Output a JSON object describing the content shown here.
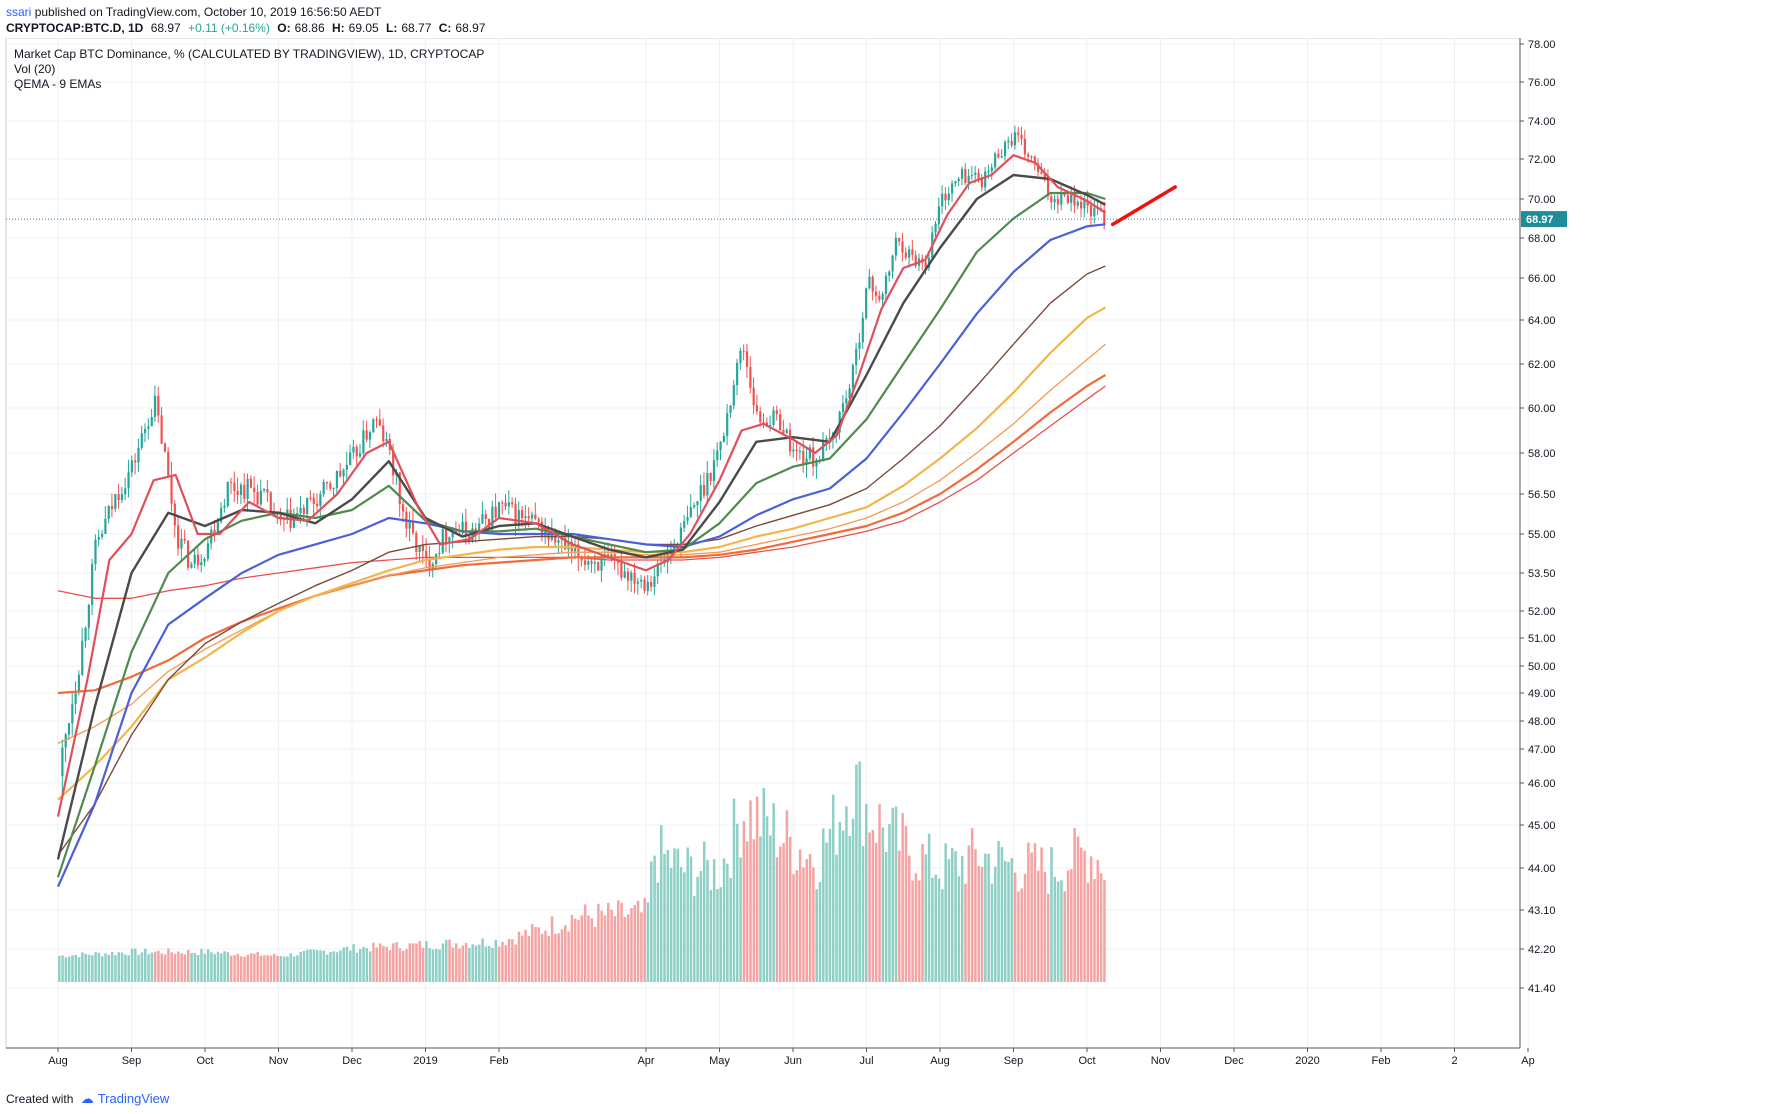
{
  "header": {
    "publisher": "ssari",
    "published_text": "published on TradingView.com, October 10, 2019 16:56:50 AEDT",
    "symbol": "CRYPTOCAP:BTC.D, 1D",
    "last": "68.97",
    "change": "+0.11 (+0.16%)",
    "ohlc": {
      "o_label": "O:",
      "o": "68.86",
      "h_label": "H:",
      "h": "69.05",
      "l_label": "L:",
      "l": "68.77",
      "c_label": "C:",
      "c": "68.97"
    }
  },
  "legend": {
    "line1": "Market Cap BTC Dominance, % (CALCULATED BY TRADINGVIEW), 1D, CRYPTOCAP",
    "line2": "Vol (20)",
    "line3": "QEMA - 9 EMAs"
  },
  "footer": {
    "created_with": "Created with",
    "brand": "TradingView"
  },
  "chart_data": {
    "type": "line",
    "ylim": [
      41.5,
      78.0
    ],
    "price_tick_labels": [
      "78.00",
      "76.00",
      "74.00",
      "72.00",
      "70.00",
      "68.00",
      "66.00",
      "64.00",
      "62.00",
      "60.00",
      "58.00",
      "56.50",
      "55.00",
      "53.50",
      "52.00",
      "51.00",
      "50.00",
      "49.00",
      "48.00",
      "47.00",
      "46.00",
      "45.00",
      "44.00",
      "43.10",
      "42.20",
      "41.40"
    ],
    "price_tick_values": [
      78.0,
      76.0,
      74.0,
      72.0,
      70.0,
      68.0,
      66.0,
      64.0,
      62.0,
      60.0,
      58.0,
      56.5,
      55.0,
      53.5,
      52.0,
      51.0,
      50.0,
      49.0,
      48.0,
      47.0,
      46.0,
      45.0,
      44.0,
      43.1,
      42.2,
      41.4
    ],
    "x_tick_labels": [
      "Aug",
      "Sep",
      "Oct",
      "Nov",
      "Dec",
      "2019",
      "Feb",
      "Apr",
      "May",
      "Jun",
      "Jul",
      "Aug",
      "Sep",
      "Oct",
      "Nov",
      "Dec",
      "2020",
      "Feb",
      "2",
      "Ap"
    ],
    "x_tick_index": [
      0,
      1,
      2,
      3,
      4,
      5,
      6,
      8,
      9,
      10,
      11,
      12,
      13,
      14,
      15,
      16,
      17,
      18,
      19,
      20
    ],
    "last_price": 68.97,
    "last_price_label": "68.97",
    "grid": true,
    "price_path": [
      [
        0,
        46.2
      ],
      [
        0.3,
        50.5
      ],
      [
        0.5,
        54.5
      ],
      [
        0.8,
        56.6
      ],
      [
        1.0,
        57.5
      ],
      [
        1.3,
        60.3
      ],
      [
        1.6,
        55.0
      ],
      [
        1.8,
        53.8
      ],
      [
        2.0,
        54.5
      ],
      [
        2.3,
        56.8
      ],
      [
        2.6,
        56.7
      ],
      [
        2.8,
        56.3
      ],
      [
        3.0,
        55.3
      ],
      [
        3.3,
        55.8
      ],
      [
        3.6,
        56.5
      ],
      [
        4.0,
        57.8
      ],
      [
        4.3,
        59.5
      ],
      [
        4.5,
        58.0
      ],
      [
        4.7,
        55.5
      ],
      [
        5.0,
        53.8
      ],
      [
        5.3,
        55.2
      ],
      [
        5.6,
        55.0
      ],
      [
        6.0,
        56.0
      ],
      [
        6.5,
        55.3
      ],
      [
        7.0,
        54.2
      ],
      [
        7.5,
        53.8
      ],
      [
        8.0,
        53.2
      ],
      [
        8.2,
        53.8
      ],
      [
        8.5,
        55.2
      ],
      [
        8.8,
        57.0
      ],
      [
        9.0,
        58.3
      ],
      [
        9.3,
        63.0
      ],
      [
        9.5,
        59.5
      ],
      [
        9.8,
        59.5
      ],
      [
        10.0,
        58.0
      ],
      [
        10.3,
        57.8
      ],
      [
        10.5,
        58.5
      ],
      [
        10.8,
        61.5
      ],
      [
        11.0,
        65.8
      ],
      [
        11.2,
        65.0
      ],
      [
        11.4,
        68.0
      ],
      [
        11.6,
        67.0
      ],
      [
        11.8,
        66.8
      ],
      [
        12.0,
        70.0
      ],
      [
        12.3,
        71.2
      ],
      [
        12.6,
        71.0
      ],
      [
        12.8,
        72.5
      ],
      [
        13.0,
        73.2
      ],
      [
        13.3,
        71.5
      ],
      [
        13.5,
        70.0
      ],
      [
        13.7,
        70.3
      ],
      [
        14.0,
        69.5
      ],
      [
        14.25,
        68.97
      ]
    ],
    "ema_fast_path": [
      [
        0,
        45.2
      ],
      [
        0.4,
        49.5
      ],
      [
        0.7,
        54.0
      ],
      [
        1.0,
        55.0
      ],
      [
        1.3,
        57.0
      ],
      [
        1.6,
        57.2
      ],
      [
        1.9,
        55.0
      ],
      [
        2.2,
        55.0
      ],
      [
        2.6,
        56.2
      ],
      [
        3.0,
        55.6
      ],
      [
        3.4,
        55.5
      ],
      [
        3.8,
        56.5
      ],
      [
        4.2,
        58.0
      ],
      [
        4.5,
        58.5
      ],
      [
        4.9,
        56.0
      ],
      [
        5.2,
        54.6
      ],
      [
        5.6,
        54.8
      ],
      [
        6.0,
        55.6
      ],
      [
        6.5,
        55.4
      ],
      [
        7.0,
        54.6
      ],
      [
        7.5,
        54.1
      ],
      [
        8.0,
        53.6
      ],
      [
        8.3,
        54.0
      ],
      [
        8.6,
        55.0
      ],
      [
        9.0,
        57.0
      ],
      [
        9.3,
        59.0
      ],
      [
        9.6,
        59.3
      ],
      [
        10.0,
        58.6
      ],
      [
        10.3,
        58.0
      ],
      [
        10.6,
        58.8
      ],
      [
        10.9,
        61.5
      ],
      [
        11.2,
        64.5
      ],
      [
        11.5,
        66.5
      ],
      [
        11.8,
        66.9
      ],
      [
        12.1,
        69.2
      ],
      [
        12.4,
        70.8
      ],
      [
        12.7,
        71.2
      ],
      [
        13.0,
        72.2
      ],
      [
        13.3,
        71.8
      ],
      [
        13.6,
        70.6
      ],
      [
        14.0,
        69.9
      ],
      [
        14.25,
        69.3
      ]
    ],
    "ema_mid_path": [
      [
        0,
        44.2
      ],
      [
        0.5,
        48.5
      ],
      [
        1.0,
        53.5
      ],
      [
        1.5,
        55.8
      ],
      [
        2.0,
        55.3
      ],
      [
        2.5,
        55.9
      ],
      [
        3.0,
        55.8
      ],
      [
        3.5,
        55.4
      ],
      [
        4.0,
        56.3
      ],
      [
        4.5,
        57.7
      ],
      [
        5.0,
        55.6
      ],
      [
        5.5,
        54.9
      ],
      [
        6.0,
        55.3
      ],
      [
        6.5,
        55.4
      ],
      [
        7.0,
        54.9
      ],
      [
        7.5,
        54.4
      ],
      [
        8.0,
        54.1
      ],
      [
        8.5,
        54.4
      ],
      [
        9.0,
        56.2
      ],
      [
        9.5,
        58.5
      ],
      [
        10.0,
        58.7
      ],
      [
        10.5,
        58.5
      ],
      [
        11.0,
        61.5
      ],
      [
        11.5,
        64.8
      ],
      [
        12.0,
        67.5
      ],
      [
        12.5,
        70.0
      ],
      [
        13.0,
        71.2
      ],
      [
        13.5,
        71.0
      ],
      [
        14.0,
        70.2
      ],
      [
        14.25,
        69.7
      ]
    ],
    "ema_green_path": [
      [
        0,
        43.8
      ],
      [
        0.5,
        46.5
      ],
      [
        1.0,
        50.5
      ],
      [
        1.5,
        53.5
      ],
      [
        2.0,
        54.8
      ],
      [
        2.5,
        55.5
      ],
      [
        3.0,
        55.8
      ],
      [
        3.5,
        55.6
      ],
      [
        4.0,
        55.9
      ],
      [
        4.5,
        56.8
      ],
      [
        5.0,
        55.5
      ],
      [
        5.5,
        55.1
      ],
      [
        6.0,
        55.1
      ],
      [
        6.5,
        55.2
      ],
      [
        7.0,
        54.9
      ],
      [
        7.5,
        54.6
      ],
      [
        8.0,
        54.3
      ],
      [
        8.5,
        54.4
      ],
      [
        9.0,
        55.4
      ],
      [
        9.5,
        56.9
      ],
      [
        10.0,
        57.5
      ],
      [
        10.5,
        57.8
      ],
      [
        11.0,
        59.5
      ],
      [
        11.5,
        62.0
      ],
      [
        12.0,
        64.5
      ],
      [
        12.5,
        67.3
      ],
      [
        13.0,
        69.0
      ],
      [
        13.5,
        70.3
      ],
      [
        14.0,
        70.3
      ],
      [
        14.25,
        70.0
      ]
    ],
    "ema_blue_path": [
      [
        0,
        43.6
      ],
      [
        0.5,
        45.5
      ],
      [
        1.0,
        49.0
      ],
      [
        1.5,
        51.5
      ],
      [
        2.0,
        52.5
      ],
      [
        2.5,
        53.5
      ],
      [
        3.0,
        54.2
      ],
      [
        3.5,
        54.6
      ],
      [
        4.0,
        55.0
      ],
      [
        4.5,
        55.6
      ],
      [
        5.0,
        55.4
      ],
      [
        5.5,
        55.1
      ],
      [
        6.0,
        55.0
      ],
      [
        6.5,
        55.0
      ],
      [
        7.0,
        55.0
      ],
      [
        7.5,
        54.8
      ],
      [
        8.0,
        54.6
      ],
      [
        8.5,
        54.5
      ],
      [
        9.0,
        54.9
      ],
      [
        9.5,
        55.7
      ],
      [
        10.0,
        56.3
      ],
      [
        10.5,
        56.7
      ],
      [
        11.0,
        57.8
      ],
      [
        11.5,
        59.8
      ],
      [
        12.0,
        62.0
      ],
      [
        12.5,
        64.3
      ],
      [
        13.0,
        66.3
      ],
      [
        13.5,
        67.9
      ],
      [
        14.0,
        68.6
      ],
      [
        14.25,
        68.7
      ]
    ],
    "ema_brown_path": [
      [
        0,
        44.3
      ],
      [
        0.5,
        45.5
      ],
      [
        1.0,
        47.5
      ],
      [
        1.5,
        49.5
      ],
      [
        2.0,
        50.8
      ],
      [
        2.5,
        51.6
      ],
      [
        3.0,
        52.3
      ],
      [
        3.5,
        53.0
      ],
      [
        4.0,
        53.6
      ],
      [
        4.5,
        54.3
      ],
      [
        5.0,
        54.6
      ],
      [
        5.5,
        54.7
      ],
      [
        6.0,
        54.8
      ],
      [
        6.5,
        54.9
      ],
      [
        7.0,
        54.9
      ],
      [
        7.5,
        54.8
      ],
      [
        8.0,
        54.6
      ],
      [
        8.5,
        54.6
      ],
      [
        9.0,
        54.8
      ],
      [
        9.5,
        55.3
      ],
      [
        10.0,
        55.7
      ],
      [
        10.5,
        56.1
      ],
      [
        11.0,
        56.7
      ],
      [
        11.5,
        57.8
      ],
      [
        12.0,
        59.2
      ],
      [
        12.5,
        61.0
      ],
      [
        13.0,
        62.9
      ],
      [
        13.5,
        64.8
      ],
      [
        14.0,
        66.2
      ],
      [
        14.25,
        66.6
      ]
    ],
    "ema_yellow_path": [
      [
        0,
        45.6
      ],
      [
        0.5,
        46.5
      ],
      [
        1.0,
        47.8
      ],
      [
        1.5,
        49.5
      ],
      [
        2.0,
        50.3
      ],
      [
        2.5,
        51.2
      ],
      [
        3.0,
        52.0
      ],
      [
        3.5,
        52.6
      ],
      [
        4.0,
        53.1
      ],
      [
        4.5,
        53.6
      ],
      [
        5.0,
        54.0
      ],
      [
        5.5,
        54.2
      ],
      [
        6.0,
        54.4
      ],
      [
        6.5,
        54.5
      ],
      [
        7.0,
        54.5
      ],
      [
        7.5,
        54.4
      ],
      [
        8.0,
        54.3
      ],
      [
        8.5,
        54.3
      ],
      [
        9.0,
        54.5
      ],
      [
        9.5,
        54.9
      ],
      [
        10.0,
        55.2
      ],
      [
        10.5,
        55.6
      ],
      [
        11.0,
        56.0
      ],
      [
        11.5,
        56.8
      ],
      [
        12.0,
        57.8
      ],
      [
        12.5,
        59.1
      ],
      [
        13.0,
        60.7
      ],
      [
        13.5,
        62.5
      ],
      [
        14.0,
        64.1
      ],
      [
        14.25,
        64.6
      ]
    ],
    "ema_light_orange_path": [
      [
        0,
        47.2
      ],
      [
        0.5,
        47.8
      ],
      [
        1.0,
        48.6
      ],
      [
        1.5,
        49.8
      ],
      [
        2.0,
        50.6
      ],
      [
        2.5,
        51.3
      ],
      [
        3.0,
        52.0
      ],
      [
        3.5,
        52.6
      ],
      [
        4.0,
        53.0
      ],
      [
        4.5,
        53.4
      ],
      [
        5.0,
        53.7
      ],
      [
        5.5,
        53.9
      ],
      [
        6.0,
        54.1
      ],
      [
        6.5,
        54.2
      ],
      [
        7.0,
        54.3
      ],
      [
        7.5,
        54.3
      ],
      [
        8.0,
        54.2
      ],
      [
        8.5,
        54.2
      ],
      [
        9.0,
        54.3
      ],
      [
        9.5,
        54.6
      ],
      [
        10.0,
        54.9
      ],
      [
        10.5,
        55.2
      ],
      [
        11.0,
        55.6
      ],
      [
        11.5,
        56.2
      ],
      [
        12.0,
        57.0
      ],
      [
        12.5,
        58.0
      ],
      [
        13.0,
        59.3
      ],
      [
        13.5,
        60.8
      ],
      [
        14.0,
        62.2
      ],
      [
        14.25,
        62.9
      ]
    ],
    "ema_orange_path": [
      [
        0,
        49.0
      ],
      [
        0.5,
        49.1
      ],
      [
        1.0,
        49.6
      ],
      [
        1.5,
        50.2
      ],
      [
        2.0,
        51.0
      ],
      [
        2.5,
        51.6
      ],
      [
        3.0,
        52.1
      ],
      [
        3.5,
        52.6
      ],
      [
        4.0,
        53.0
      ],
      [
        4.5,
        53.4
      ],
      [
        5.0,
        53.6
      ],
      [
        5.5,
        53.8
      ],
      [
        6.0,
        53.9
      ],
      [
        6.5,
        54.0
      ],
      [
        7.0,
        54.1
      ],
      [
        7.5,
        54.1
      ],
      [
        8.0,
        54.1
      ],
      [
        8.5,
        54.1
      ],
      [
        9.0,
        54.2
      ],
      [
        9.5,
        54.4
      ],
      [
        10.0,
        54.7
      ],
      [
        10.5,
        55.0
      ],
      [
        11.0,
        55.3
      ],
      [
        11.5,
        55.8
      ],
      [
        12.0,
        56.5
      ],
      [
        12.5,
        57.4
      ],
      [
        13.0,
        58.5
      ],
      [
        13.5,
        59.8
      ],
      [
        14.0,
        61.0
      ],
      [
        14.25,
        61.5
      ]
    ],
    "ema_red_path": [
      [
        0,
        52.8
      ],
      [
        0.5,
        52.5
      ],
      [
        1.0,
        52.5
      ],
      [
        1.5,
        52.8
      ],
      [
        2.0,
        53.0
      ],
      [
        2.5,
        53.3
      ],
      [
        3.0,
        53.5
      ],
      [
        3.5,
        53.7
      ],
      [
        4.0,
        53.9
      ],
      [
        4.5,
        54.0
      ],
      [
        5.0,
        54.1
      ],
      [
        5.5,
        54.1
      ],
      [
        6.0,
        54.1
      ],
      [
        6.5,
        54.1
      ],
      [
        7.0,
        54.1
      ],
      [
        7.5,
        54.0
      ],
      [
        8.0,
        54.0
      ],
      [
        8.5,
        54.0
      ],
      [
        9.0,
        54.1
      ],
      [
        9.5,
        54.3
      ],
      [
        10.0,
        54.5
      ],
      [
        10.5,
        54.8
      ],
      [
        11.0,
        55.1
      ],
      [
        11.5,
        55.5
      ],
      [
        12.0,
        56.2
      ],
      [
        12.5,
        57.0
      ],
      [
        13.0,
        58.0
      ],
      [
        13.5,
        59.2
      ],
      [
        14.0,
        60.4
      ],
      [
        14.25,
        61.0
      ]
    ],
    "trendline": [
      [
        14.35,
        68.7
      ],
      [
        15.2,
        70.6
      ]
    ],
    "volume_envelope": [
      [
        0,
        42.1
      ],
      [
        1.0,
        42.2
      ],
      [
        2.0,
        42.2
      ],
      [
        3.0,
        42.1
      ],
      [
        4.0,
        42.3
      ],
      [
        5.0,
        42.4
      ],
      [
        6.0,
        42.5
      ],
      [
        6.5,
        42.8
      ],
      [
        7.0,
        43.2
      ],
      [
        8.0,
        43.3
      ],
      [
        8.1,
        45.0
      ],
      [
        8.5,
        44.5
      ],
      [
        9.0,
        44.5
      ],
      [
        9.3,
        46.2
      ],
      [
        9.5,
        46.0
      ],
      [
        10.0,
        45.2
      ],
      [
        10.3,
        44.8
      ],
      [
        10.6,
        46.0
      ],
      [
        10.8,
        47.2
      ],
      [
        11.0,
        46.2
      ],
      [
        11.3,
        45.5
      ],
      [
        11.6,
        45.0
      ],
      [
        12.0,
        44.5
      ],
      [
        12.5,
        44.9
      ],
      [
        13.0,
        44.6
      ],
      [
        13.5,
        44.5
      ],
      [
        14.0,
        45.0
      ],
      [
        14.25,
        44.6
      ]
    ],
    "colors": {
      "candle_up": "#26a69a",
      "candle_down": "#ef5350",
      "vol_up": "#8ecfc6",
      "vol_down": "#f4a4a2",
      "ema_fast": "#e0505a",
      "ema_mid": "#4a4a4a",
      "ema_green": "#4f8a4f",
      "ema_blue": "#4a5fd8",
      "ema_brown": "#7a4a3a",
      "ema_yellow": "#f2b54a",
      "ema_light_orange": "#f59a4e",
      "ema_orange": "#f06a3c",
      "ema_red": "#e8504a",
      "trendline": "#ee1111",
      "last_price_bg": "#1f8c9a",
      "grid": "#eef0f3"
    }
  }
}
